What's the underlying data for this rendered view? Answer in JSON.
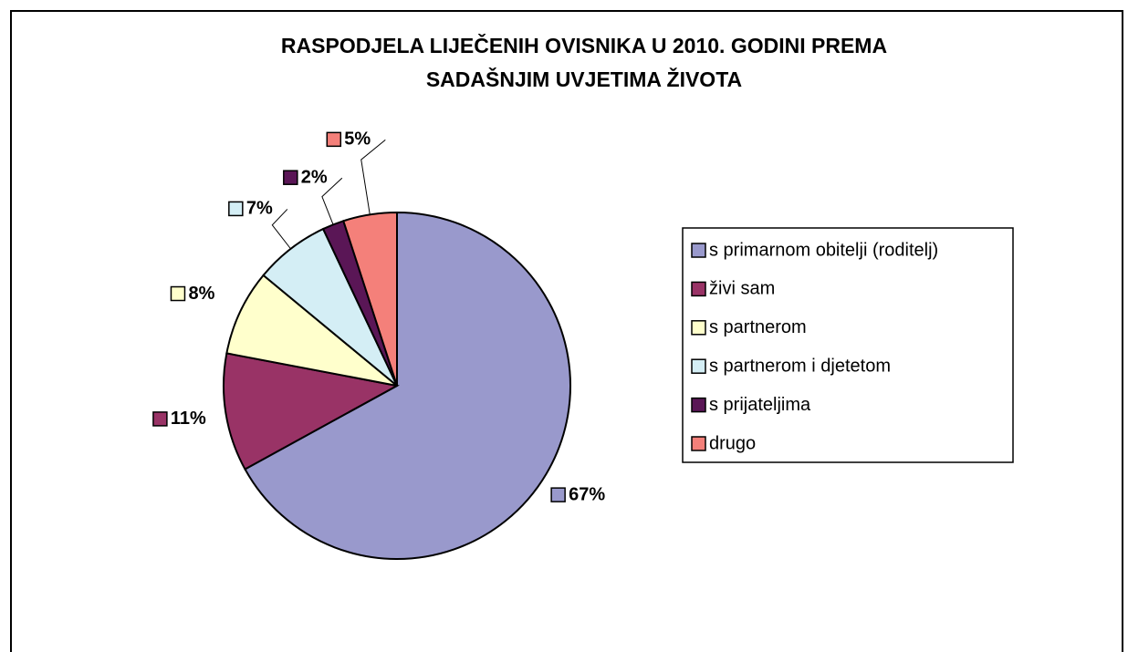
{
  "chart_data": {
    "type": "pie",
    "title": [
      "RASPODJELA LIJEČENIH OVISNIKA U 2010. GODINI PREMA",
      "SADAŠNJIM UVJETIMA ŽIVOTA"
    ],
    "categories": [
      "s primarnom obitelji (roditelj)",
      "živi sam",
      "s partnerom",
      "s partnerom i djetetom",
      "s prijateljima",
      "drugo"
    ],
    "values": [
      67,
      11,
      8,
      7,
      2,
      5
    ],
    "value_labels": [
      "67%",
      "11%",
      "8%",
      "7%",
      "2%",
      "5%"
    ],
    "colors": [
      "#9999cc",
      "#993366",
      "#ffffcc",
      "#d4eef5",
      "#5a1656",
      "#f4807a"
    ],
    "legend": "right"
  }
}
